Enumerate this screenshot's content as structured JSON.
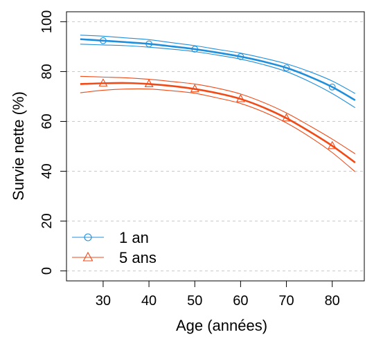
{
  "chart_data": {
    "type": "line",
    "xlabel": "Age (années)",
    "ylabel": "Survie nette (%)",
    "xlim": [
      22,
      87
    ],
    "ylim": [
      -4,
      104
    ],
    "x_ticks": [
      30,
      40,
      50,
      60,
      70,
      80
    ],
    "y_ticks": [
      0,
      20,
      40,
      60,
      80,
      100
    ],
    "grid": "horizontal-dashed",
    "legend_position": "bottom-left",
    "curve_x": [
      25,
      30,
      35,
      40,
      45,
      50,
      55,
      60,
      65,
      70,
      75,
      80,
      85
    ],
    "series": [
      {
        "name": "1 an",
        "color": "#1f8fdc",
        "marker": "circle",
        "marker_x": [
          30,
          40,
          50,
          60,
          70,
          80
        ],
        "marker_y": [
          92.4,
          91.1,
          89.0,
          86.0,
          81.5,
          73.8
        ],
        "values": [
          93.0,
          92.4,
          91.8,
          91.1,
          90.1,
          89.0,
          87.6,
          86.0,
          84.0,
          81.5,
          78.0,
          73.8,
          68.5
        ],
        "lower": [
          91.0,
          90.7,
          90.4,
          89.8,
          89.0,
          88.0,
          86.6,
          85.0,
          82.8,
          80.0,
          76.0,
          71.2,
          65.5
        ],
        "upper": [
          94.6,
          94.2,
          93.5,
          92.8,
          91.6,
          90.4,
          88.9,
          87.4,
          85.4,
          83.1,
          80.0,
          76.2,
          71.2
        ]
      },
      {
        "name": "5 ans",
        "color": "#f04a17",
        "marker": "triangle",
        "marker_x": [
          30,
          40,
          50,
          60,
          70,
          80
        ],
        "marker_y": [
          75.3,
          75.0,
          73.0,
          69.0,
          61.3,
          50.2
        ],
        "values": [
          75.0,
          75.3,
          75.4,
          75.0,
          74.2,
          73.0,
          71.3,
          69.0,
          65.6,
          61.3,
          56.0,
          50.2,
          43.5
        ],
        "lower": [
          71.5,
          72.5,
          73.0,
          73.0,
          72.3,
          71.3,
          69.4,
          67.2,
          63.8,
          59.4,
          53.9,
          47.5,
          39.8
        ],
        "upper": [
          78.1,
          77.8,
          77.5,
          76.9,
          76.0,
          75.0,
          73.3,
          71.0,
          67.6,
          63.4,
          58.3,
          52.9,
          47.0
        ]
      }
    ]
  }
}
